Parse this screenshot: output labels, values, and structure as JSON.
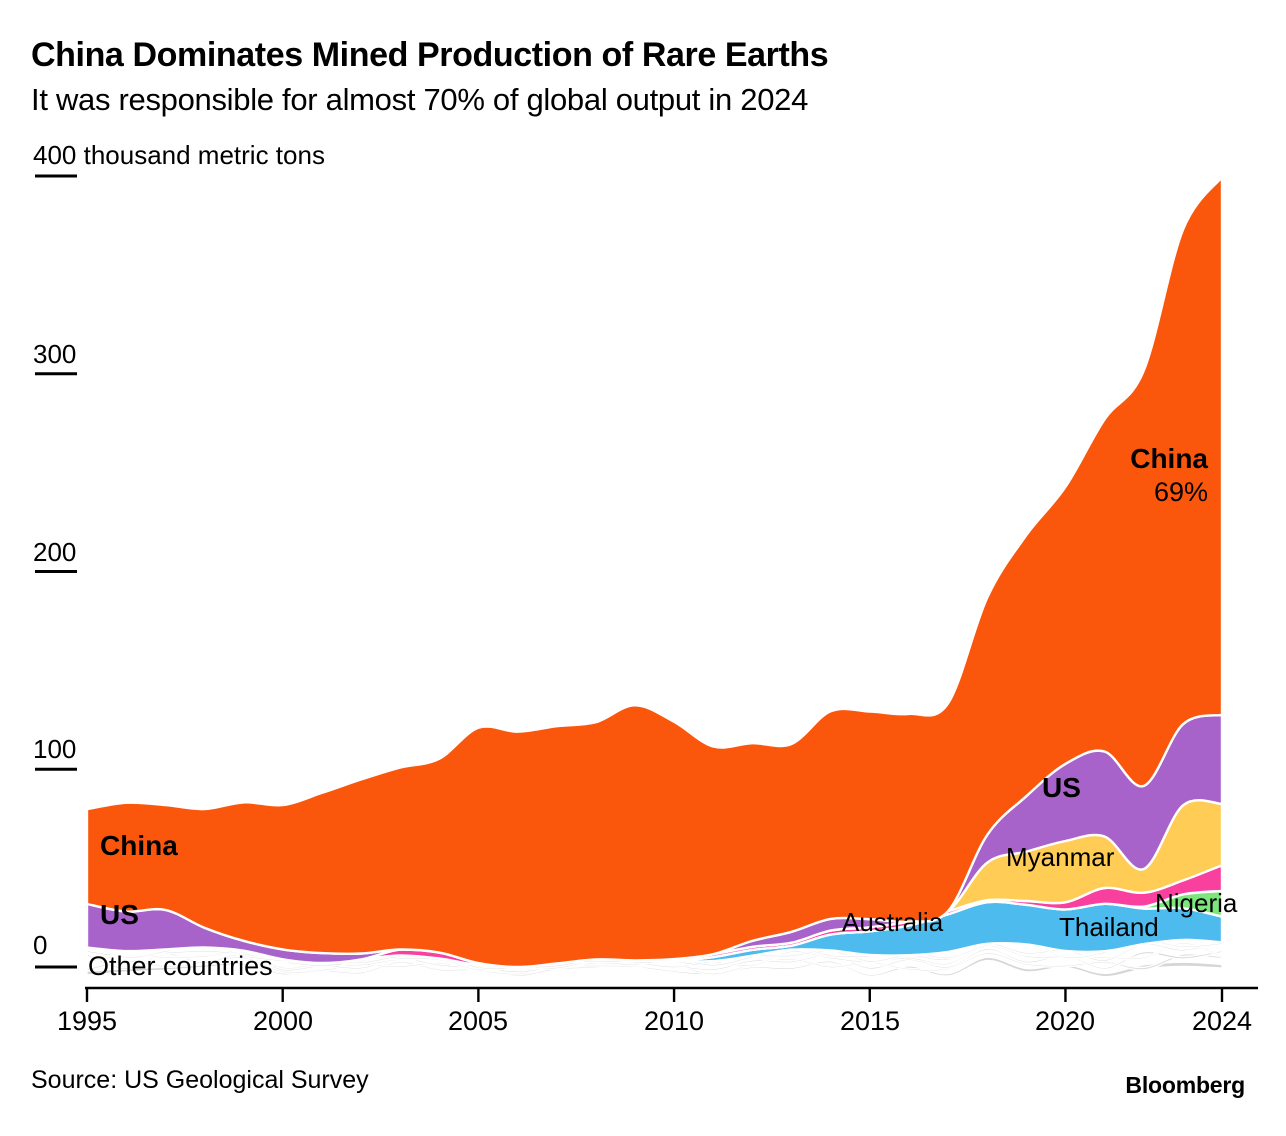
{
  "header": {
    "title": "China Dominates Mined Production of Rare Earths",
    "subtitle": "It was responsible for almost 70% of global output in 2024"
  },
  "axes": {
    "y_unit_label": "400 thousand metric tons",
    "y_ticks": [
      "300",
      "200",
      "100",
      "0"
    ],
    "x_ticks": [
      "1995",
      "2000",
      "2005",
      "2010",
      "2015",
      "2020",
      "2024"
    ]
  },
  "labels": {
    "china_left": "China",
    "us_left": "US",
    "other_countries": "Other countries",
    "australia": "Australia",
    "myanmar": "Myanmar",
    "us_right": "US",
    "thailand": "Thailand",
    "nigeria": "Nigeria",
    "china_right": "China",
    "china_right_pct": "69%"
  },
  "footer": {
    "source": "Source: US Geological Survey",
    "brand": "Bloomberg"
  },
  "colors": {
    "China": "#fa560c",
    "US": "#a863cb",
    "Myanmar": "#ffcd55",
    "Australia": "#4dbbee",
    "Thailand": "#f9409e",
    "Nigeria": "#7ce57c",
    "Other countries": "#d8d8d8",
    "axis": "#000000"
  },
  "chart_data": {
    "type": "area",
    "stacked": true,
    "title": "China Dominates Mined Production of Rare Earths",
    "subtitle": "It was responsible for almost 70% of global output in 2024",
    "ylabel": "thousand metric tons",
    "ylim": [
      0,
      400
    ],
    "y_tick_values": [
      400,
      300,
      200,
      100,
      0
    ],
    "x_tick_values": [
      1995,
      2000,
      2005,
      2010,
      2015,
      2020,
      2024
    ],
    "x": [
      1995,
      1996,
      1997,
      1998,
      1999,
      2000,
      2001,
      2002,
      2003,
      2004,
      2005,
      2006,
      2007,
      2008,
      2009,
      2010,
      2011,
      2012,
      2013,
      2014,
      2015,
      2016,
      2017,
      2018,
      2019,
      2020,
      2021,
      2022,
      2023,
      2024
    ],
    "stack_order": [
      "Other countries",
      "Australia",
      "Nigeria",
      "Thailand",
      "Myanmar",
      "US",
      "China"
    ],
    "series": [
      {
        "name": "China",
        "values": [
          48,
          55,
          53,
          60,
          70,
          73,
          81,
          88,
          92,
          98,
          119,
          119,
          120,
          120,
          129,
          120,
          105,
          100,
          95,
          105,
          105,
          105,
          105,
          120,
          132,
          140,
          168,
          210,
          250,
          272
        ]
      },
      {
        "name": "US",
        "values": [
          22,
          20,
          20,
          10,
          5,
          5,
          5,
          3,
          0,
          0,
          0,
          0,
          0,
          0,
          0,
          0,
          0,
          3,
          5.5,
          5.9,
          4.1,
          0,
          0,
          14,
          28,
          39,
          43,
          42,
          41,
          45
        ]
      },
      {
        "name": "Myanmar",
        "values": [
          0,
          0,
          0,
          0,
          0,
          0,
          0,
          0,
          0,
          0,
          0,
          0,
          0,
          0,
          0,
          0,
          0,
          0,
          0,
          0,
          0,
          0,
          0,
          19,
          25,
          31,
          26,
          12,
          38,
          31
        ]
      },
      {
        "name": "Australia",
        "values": [
          0,
          0,
          0,
          0,
          0,
          0,
          0,
          0,
          0,
          0,
          0,
          0,
          0,
          0,
          0,
          0,
          2,
          3,
          2,
          8,
          12,
          15,
          19,
          21,
          20,
          21,
          24,
          18,
          16,
          13
        ]
      },
      {
        "name": "Thailand",
        "values": [
          0,
          0,
          0,
          0,
          0,
          0,
          0,
          0,
          3,
          3,
          1,
          0,
          0,
          0,
          0,
          1,
          1.5,
          1.5,
          1.5,
          2,
          2,
          2,
          1.6,
          1,
          1.9,
          3.6,
          8,
          7,
          7,
          13
        ]
      },
      {
        "name": "Nigeria",
        "values": [
          0,
          0,
          0,
          0,
          0,
          0,
          0,
          0,
          0,
          0,
          0,
          0,
          0,
          0,
          0,
          0,
          0,
          0,
          0,
          0,
          0,
          0,
          0,
          0,
          0,
          0,
          0,
          1,
          7,
          13
        ]
      },
      {
        "name": "Other countries",
        "values": [
          13,
          12,
          11,
          10,
          9,
          7,
          6,
          6,
          6,
          5,
          4,
          4,
          4,
          4,
          4,
          6,
          7,
          8,
          9,
          9,
          9,
          10,
          10,
          12,
          12,
          11,
          12,
          14,
          14,
          13
        ]
      }
    ],
    "annotations": [
      "China",
      "US",
      "Other countries",
      "Australia",
      "Myanmar",
      "US",
      "Thailand",
      "Nigeria",
      "China 69%"
    ],
    "legend": "labels drawn on areas",
    "grid": false
  }
}
